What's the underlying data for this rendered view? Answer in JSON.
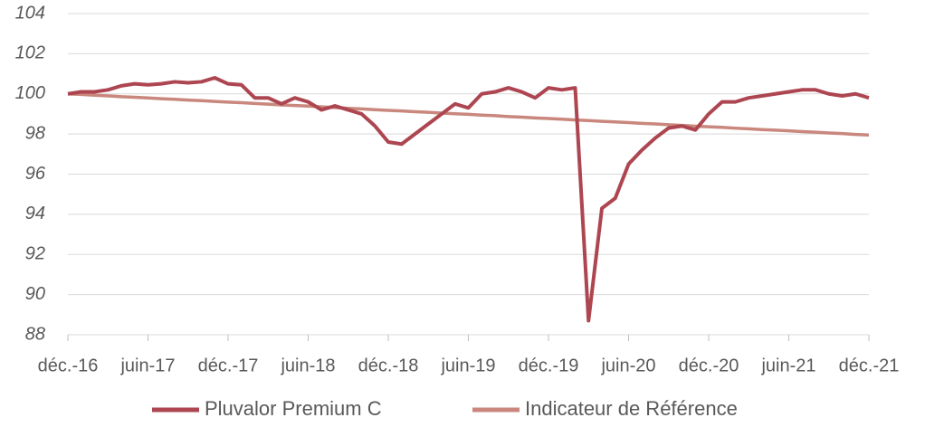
{
  "chart_data": {
    "type": "line",
    "categories": [
      "déc.-16",
      null,
      null,
      null,
      null,
      null,
      "juin-17",
      null,
      null,
      null,
      null,
      null,
      "déc.-17",
      null,
      null,
      null,
      null,
      null,
      "juin-18",
      null,
      null,
      null,
      null,
      null,
      "déc.-18",
      null,
      null,
      null,
      null,
      null,
      "juin-19",
      null,
      null,
      null,
      null,
      null,
      "déc.-19",
      null,
      null,
      null,
      null,
      null,
      "juin-20",
      null,
      null,
      null,
      null,
      null,
      "déc.-20",
      null,
      null,
      null,
      null,
      null,
      "juin-21",
      null,
      null,
      null,
      null,
      null,
      "déc.-21"
    ],
    "series": [
      {
        "name": "Pluvalor Premium C",
        "color": "#ad4651",
        "values": [
          100.0,
          100.1,
          100.1,
          100.2,
          100.4,
          100.5,
          100.45,
          100.5,
          100.6,
          100.55,
          100.6,
          100.8,
          100.5,
          100.45,
          99.8,
          99.8,
          99.5,
          99.8,
          99.6,
          99.2,
          99.4,
          99.2,
          99.0,
          98.4,
          97.6,
          97.5,
          98.0,
          98.5,
          99.0,
          99.5,
          99.3,
          100.0,
          100.1,
          100.3,
          100.1,
          99.8,
          100.3,
          100.2,
          100.3,
          88.7,
          94.3,
          94.8,
          96.5,
          97.2,
          97.8,
          98.3,
          98.4,
          98.2,
          99.0,
          99.6,
          99.6,
          99.8,
          99.9,
          100.0,
          100.1,
          100.2,
          100.2,
          100.0,
          99.9,
          100.0,
          99.8
        ]
      },
      {
        "name": "Indicateur de Référence",
        "color": "#c9877d",
        "values": [
          100.0,
          99.97,
          99.93,
          99.9,
          99.86,
          99.83,
          99.8,
          99.76,
          99.73,
          99.69,
          99.66,
          99.62,
          99.59,
          99.56,
          99.52,
          99.49,
          99.45,
          99.42,
          99.39,
          99.35,
          99.32,
          99.28,
          99.25,
          99.21,
          99.18,
          99.15,
          99.11,
          99.08,
          99.04,
          99.01,
          98.98,
          98.94,
          98.91,
          98.87,
          98.84,
          98.8,
          98.77,
          98.74,
          98.7,
          98.67,
          98.63,
          98.6,
          98.57,
          98.53,
          98.5,
          98.46,
          98.43,
          98.39,
          98.36,
          98.33,
          98.29,
          98.26,
          98.22,
          98.19,
          98.16,
          98.12,
          98.09,
          98.05,
          98.02,
          97.98,
          97.95
        ]
      }
    ],
    "ylim": [
      88,
      104
    ],
    "yticks": [
      88,
      90,
      92,
      94,
      96,
      98,
      100,
      102,
      104
    ],
    "grid": true,
    "legend": "bottom"
  }
}
